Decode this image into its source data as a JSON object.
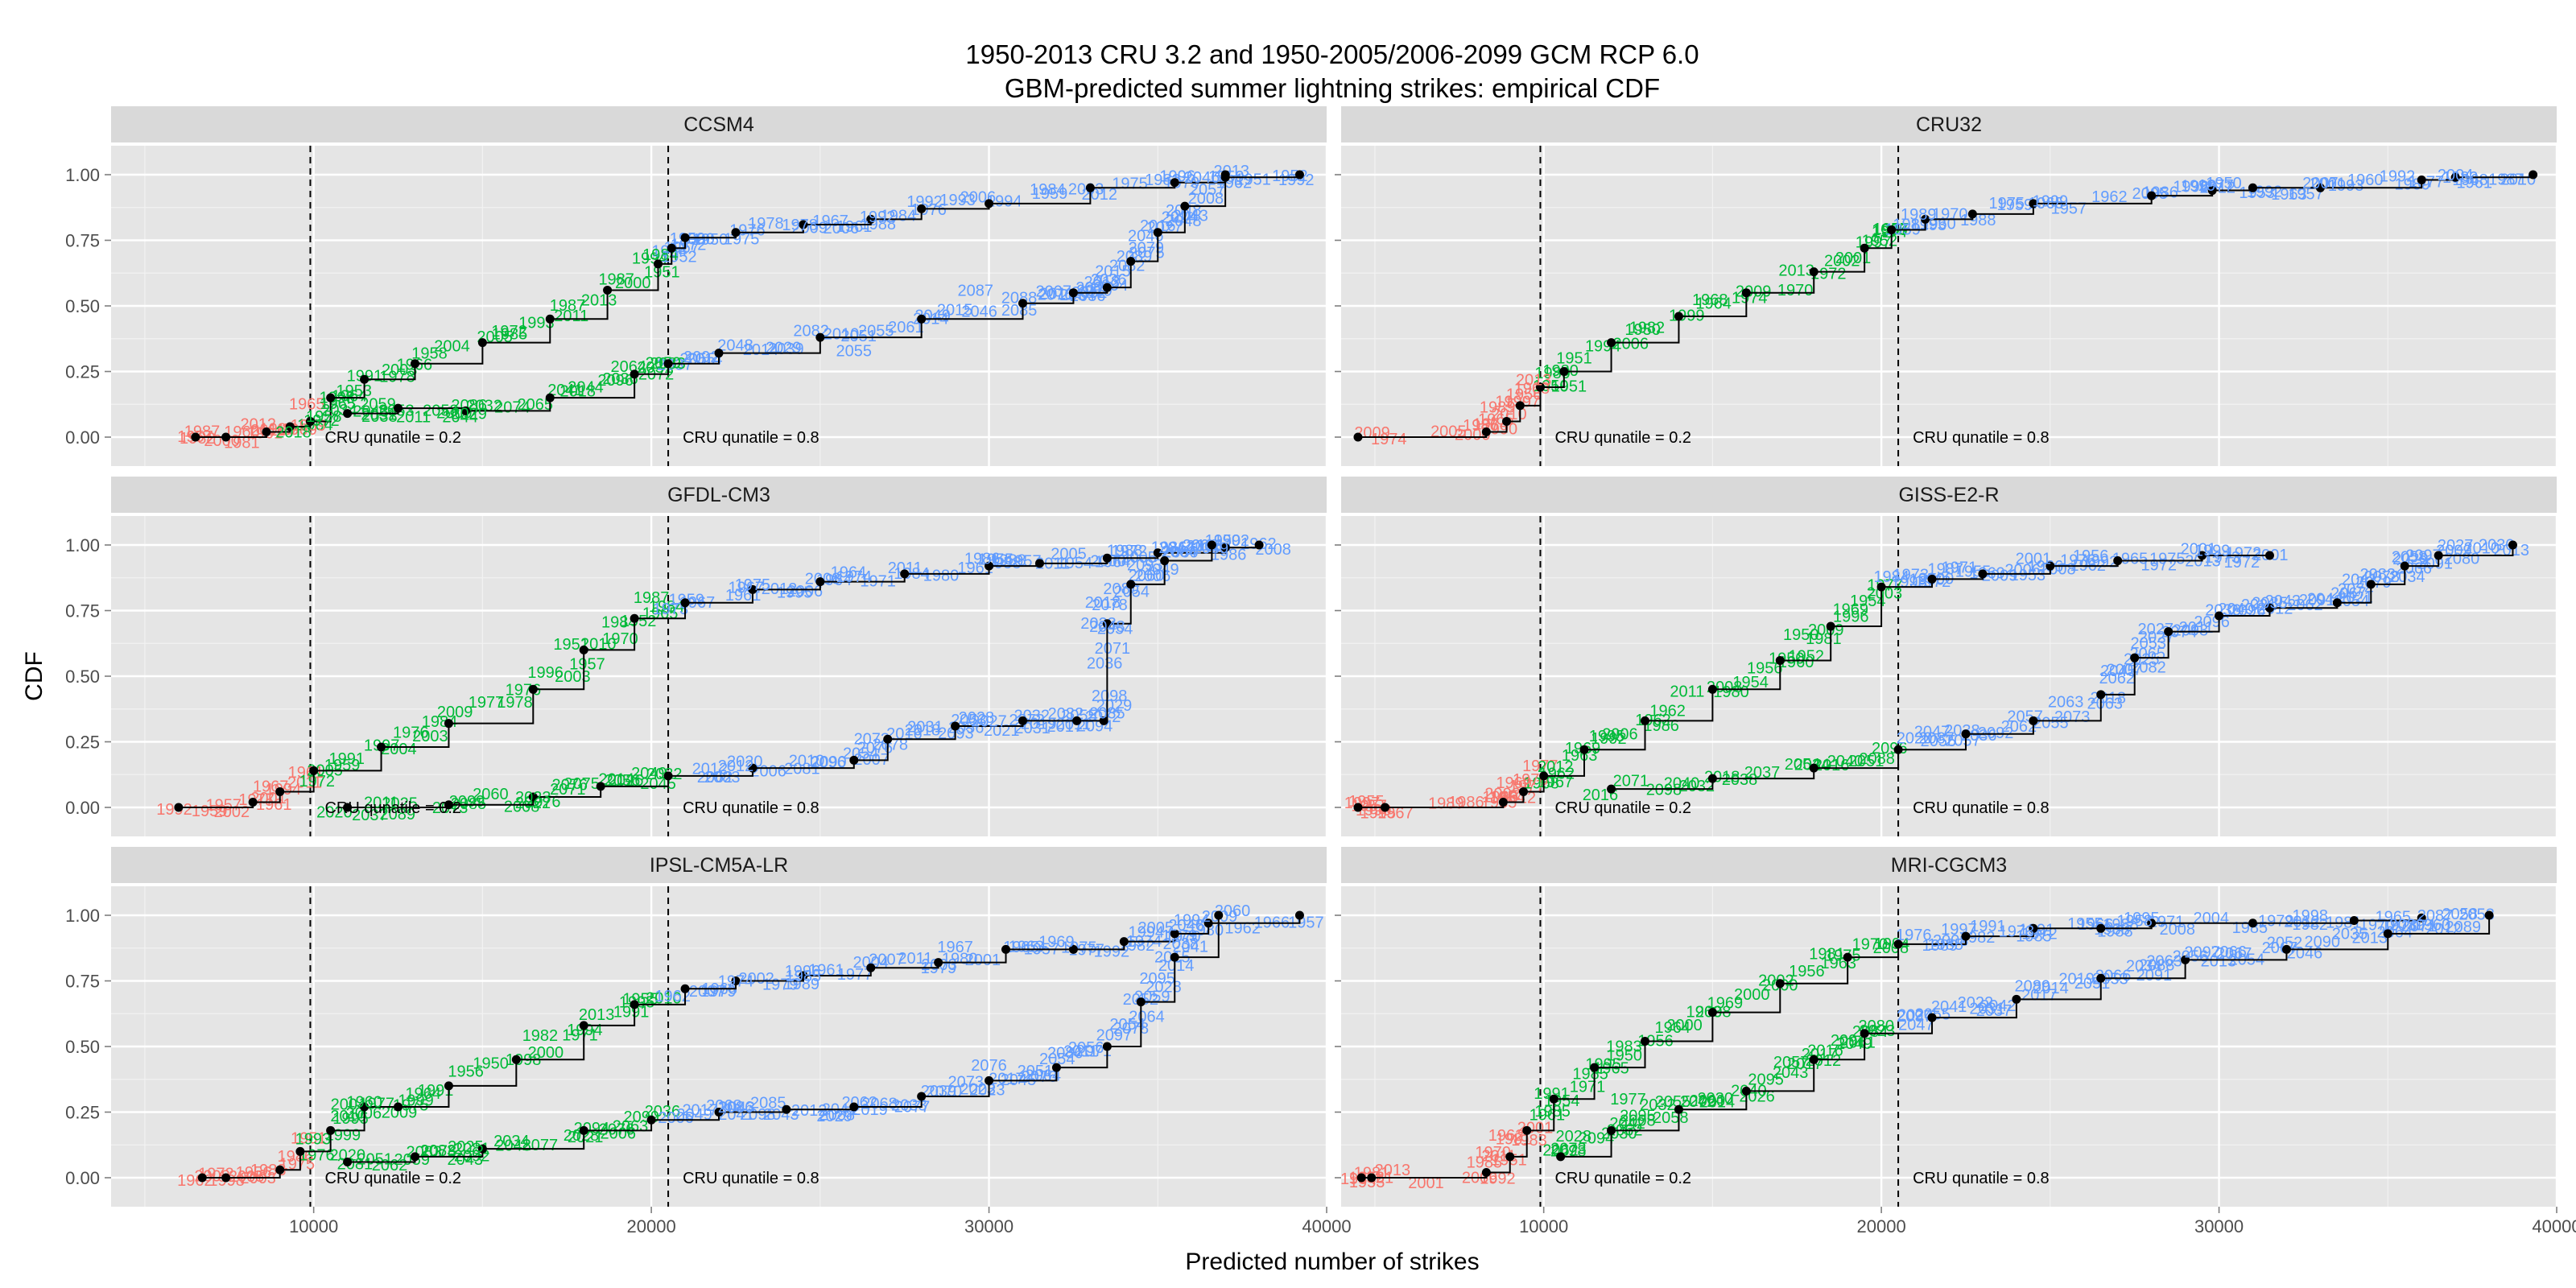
{
  "chart_data": {
    "type": "scatter",
    "title": "1950-2013 CRU 3.2 and 1950-2005/2006-2099 GCM RCP 6.0",
    "subtitle": "GBM-predicted summer lightning strikes: empirical CDF",
    "xlabel": "Predicted number of strikes",
    "ylabel": "CDF",
    "xlim": [
      4000,
      40000
    ],
    "ylim": [
      0,
      1
    ],
    "x_ticks": [
      10000,
      20000,
      30000,
      40000
    ],
    "y_ticks": [
      "0.00",
      "0.25",
      "0.50",
      "0.75",
      "1.00"
    ],
    "vlines": [
      {
        "x": 9900,
        "label": "CRU qunatile = 0.2"
      },
      {
        "x": 20500,
        "label": "CRU qunatile = 0.8"
      }
    ],
    "period_colors": {
      "low": "#F8766D",
      "mid": "#00BA38",
      "high": "#619CFF",
      "step": "#000000"
    },
    "panels": [
      {
        "name": "CCSM4",
        "curves": [
          {
            "x": [
              6500,
              7400,
              8600,
              9300,
              9900,
              10500,
              11500,
              13000,
              15000,
              17000,
              18700,
              20200,
              20600,
              21000,
              22500,
              24500,
              26500,
              28000,
              30000,
              33000,
              35500,
              37000,
              39200
            ],
            "y": [
              0.0,
              0.0,
              0.02,
              0.04,
              0.06,
              0.15,
              0.22,
              0.28,
              0.36,
              0.45,
              0.56,
              0.66,
              0.72,
              0.76,
              0.78,
              0.81,
              0.83,
              0.87,
              0.89,
              0.95,
              0.97,
              0.99,
              1.0
            ]
          },
          {
            "x": [
              11000,
              12500,
              14500,
              17000,
              19500,
              20500,
              22000,
              25000,
              28000,
              31000,
              32500,
              33500,
              34200,
              35000,
              35800,
              37000
            ],
            "y": [
              0.09,
              0.11,
              0.1,
              0.15,
              0.24,
              0.28,
              0.32,
              0.38,
              0.45,
              0.51,
              0.55,
              0.57,
              0.67,
              0.78,
              0.88,
              1.0
            ]
          }
        ],
        "year_labels": [
          {
            "text": "1958",
            "x": 10300,
            "y": 0.08,
            "p": "mid"
          },
          {
            "text": "2018",
            "x": 9400,
            "y": 0.02,
            "p": "mid"
          },
          {
            "text": "2029",
            "x": 14600,
            "y": 0.09,
            "p": "mid"
          },
          {
            "text": "1978",
            "x": 24400,
            "y": 0.81,
            "p": "high"
          },
          {
            "text": "1992",
            "x": 26700,
            "y": 0.84,
            "p": "high"
          },
          {
            "text": "1959",
            "x": 31800,
            "y": 0.93,
            "p": "high"
          },
          {
            "text": "2055",
            "x": 26000,
            "y": 0.33,
            "p": "high"
          },
          {
            "text": "2087",
            "x": 29600,
            "y": 0.56,
            "p": "high"
          }
        ]
      },
      {
        "name": "CRU32",
        "curves": [
          {
            "x": [
              4500,
              8300,
              8900,
              9300,
              9900,
              10600,
              12000,
              14000,
              16000,
              18000,
              19500,
              20300,
              21300,
              22700,
              24500,
              28000,
              29800,
              31000,
              33000,
              36000,
              37000,
              39300
            ],
            "y": [
              0.0,
              0.02,
              0.06,
              0.12,
              0.19,
              0.25,
              0.36,
              0.46,
              0.55,
              0.63,
              0.72,
              0.79,
              0.83,
              0.85,
              0.89,
              0.92,
              0.94,
              0.95,
              0.95,
              0.98,
              0.99,
              1.0
            ]
          }
        ],
        "year_labels": [
          {
            "text": "1999",
            "x": 25000,
            "y": 0.9,
            "p": "high"
          },
          {
            "text": "1977",
            "x": 29900,
            "y": 0.96,
            "p": "high"
          },
          {
            "text": "2007",
            "x": 33000,
            "y": 0.97,
            "p": "high"
          },
          {
            "text": "2004",
            "x": 37000,
            "y": 1.0,
            "p": "high"
          },
          {
            "text": "1989",
            "x": 21100,
            "y": 0.85,
            "p": "high"
          },
          {
            "text": "2013",
            "x": 9700,
            "y": 0.22,
            "p": "low"
          }
        ]
      },
      {
        "name": "GFDL-CM3",
        "curves": [
          {
            "x": [
              6000,
              8200,
              9000,
              10000,
              12000,
              14000,
              16500,
              18000,
              19500,
              21000,
              23000,
              25000,
              27500,
              30000,
              31500,
              33500,
              35000,
              37000,
              38000
            ],
            "y": [
              0.0,
              0.02,
              0.06,
              0.14,
              0.23,
              0.32,
              0.45,
              0.6,
              0.72,
              0.78,
              0.83,
              0.86,
              0.89,
              0.92,
              0.93,
              0.95,
              0.97,
              0.99,
              1.0
            ]
          },
          {
            "x": [
              11000,
              14000,
              16500,
              18500,
              20500,
              23000,
              26000,
              27000,
              29000,
              31000,
              32600,
              33400,
              33500,
              34200,
              35200,
              36600
            ],
            "y": [
              0.0,
              0.01,
              0.04,
              0.08,
              0.12,
              0.15,
              0.18,
              0.26,
              0.31,
              0.33,
              0.33,
              0.33,
              0.7,
              0.85,
              0.94,
              1.0
            ]
          }
        ],
        "year_labels": [
          {
            "text": "1987",
            "x": 20000,
            "y": 0.8,
            "p": "mid"
          },
          {
            "text": "1975",
            "x": 23000,
            "y": 0.85,
            "p": "high"
          },
          {
            "text": "1974",
            "x": 26000,
            "y": 0.88,
            "p": "high"
          },
          {
            "text": "1986",
            "x": 29800,
            "y": 0.95,
            "p": "high"
          },
          {
            "text": "2012",
            "x": 22500,
            "y": 0.16,
            "p": "high"
          },
          {
            "text": "2010",
            "x": 24600,
            "y": 0.18,
            "p": "high"
          },
          {
            "text": "2027",
            "x": 30000,
            "y": 0.33,
            "p": "high"
          },
          {
            "text": "2035",
            "x": 33500,
            "y": 0.36,
            "p": "high"
          },
          {
            "text": "2048",
            "x": 33500,
            "y": 0.69,
            "p": "high"
          },
          {
            "text": "2023",
            "x": 16500,
            "y": 0.04,
            "p": "mid"
          },
          {
            "text": "2011",
            "x": 12000,
            "y": 0.02,
            "p": "mid"
          }
        ]
      },
      {
        "name": "GISS-E2-R",
        "curves": [
          {
            "x": [
              4500,
              5300,
              8800,
              9400,
              10000,
              11200,
              13000,
              15000,
              17000,
              18500,
              20000,
              21500,
              23000,
              25000,
              27000,
              29500,
              31500
            ],
            "y": [
              0.0,
              0.0,
              0.02,
              0.06,
              0.12,
              0.22,
              0.33,
              0.45,
              0.56,
              0.69,
              0.84,
              0.87,
              0.89,
              0.92,
              0.94,
              0.96,
              0.96
            ]
          },
          {
            "x": [
              12000,
              15000,
              18000,
              20500,
              22500,
              24500,
              26500,
              27500,
              28500,
              30000,
              31500,
              33500,
              34500,
              35500,
              36500,
              38700
            ],
            "y": [
              0.07,
              0.11,
              0.15,
              0.22,
              0.28,
              0.33,
              0.43,
              0.57,
              0.67,
              0.73,
              0.76,
              0.78,
              0.85,
              0.92,
              0.96,
              1.0
            ]
          }
        ],
        "year_labels": [
          {
            "text": "1984",
            "x": 20300,
            "y": 0.88,
            "p": "high"
          },
          {
            "text": "1987",
            "x": 21900,
            "y": 0.91,
            "p": "high"
          },
          {
            "text": "2001",
            "x": 24500,
            "y": 0.95,
            "p": "high"
          },
          {
            "text": "1956",
            "x": 26200,
            "y": 0.96,
            "p": "high"
          },
          {
            "text": "1999",
            "x": 29800,
            "y": 0.98,
            "p": "high"
          },
          {
            "text": "2027",
            "x": 37000,
            "y": 1.0,
            "p": "high"
          },
          {
            "text": "2035",
            "x": 31500,
            "y": 0.78,
            "p": "high"
          },
          {
            "text": "2047",
            "x": 21500,
            "y": 0.29,
            "p": "high"
          }
        ]
      },
      {
        "name": "IPSL-CM5A-LR",
        "curves": [
          {
            "x": [
              6700,
              7400,
              9000,
              9600,
              10500,
              11500,
              12500,
              14000,
              16000,
              18000,
              19500,
              21000,
              22500,
              24500,
              26500,
              28500,
              30500,
              32500,
              34000,
              35500,
              36500,
              39200
            ],
            "y": [
              0.0,
              0.0,
              0.03,
              0.1,
              0.18,
              0.27,
              0.27,
              0.35,
              0.45,
              0.58,
              0.66,
              0.72,
              0.75,
              0.77,
              0.8,
              0.82,
              0.87,
              0.87,
              0.9,
              0.93,
              0.97,
              1.0
            ]
          },
          {
            "x": [
              11000,
              13000,
              15000,
              18000,
              20000,
              22000,
              24000,
              26000,
              28000,
              30000,
              32000,
              33500,
              34500,
              35500,
              36800
            ],
            "y": [
              0.06,
              0.08,
              0.11,
              0.18,
              0.22,
              0.25,
              0.26,
              0.27,
              0.31,
              0.37,
              0.42,
              0.5,
              0.67,
              0.84,
              1.0
            ]
          }
        ],
        "year_labels": [
          {
            "text": "1960",
            "x": 11500,
            "y": 0.29,
            "p": "mid"
          },
          {
            "text": "1974",
            "x": 22500,
            "y": 0.75,
            "p": "high"
          },
          {
            "text": "1985",
            "x": 24500,
            "y": 0.77,
            "p": "high"
          },
          {
            "text": "1967",
            "x": 29000,
            "y": 0.88,
            "p": "high"
          },
          {
            "text": "1969",
            "x": 32000,
            "y": 0.9,
            "p": "high"
          },
          {
            "text": "2086",
            "x": 22500,
            "y": 0.27,
            "p": "high"
          },
          {
            "text": "2076",
            "x": 30000,
            "y": 0.43,
            "p": "high"
          },
          {
            "text": "2025",
            "x": 14500,
            "y": 0.12,
            "p": "mid"
          }
        ]
      },
      {
        "name": "MRI-CGCM3",
        "curves": [
          {
            "x": [
              4600,
              4900,
              8300,
              9000,
              9500,
              10300,
              11500,
              13000,
              15000,
              17000,
              19000,
              20500,
              22500,
              24500,
              26500,
              28000,
              31000,
              34000,
              36000
            ],
            "y": [
              0.0,
              0.0,
              0.02,
              0.08,
              0.18,
              0.3,
              0.42,
              0.52,
              0.63,
              0.74,
              0.84,
              0.89,
              0.92,
              0.95,
              0.95,
              0.97,
              0.97,
              0.98,
              0.99
            ]
          },
          {
            "x": [
              10500,
              12000,
              14000,
              16000,
              18000,
              19500,
              21500,
              24000,
              26500,
              29000,
              32000,
              35000,
              38000
            ],
            "y": [
              0.08,
              0.18,
              0.26,
              0.33,
              0.45,
              0.55,
              0.61,
              0.68,
              0.76,
              0.83,
              0.87,
              0.93,
              1.0
            ]
          }
        ],
        "year_labels": [
          {
            "text": "1985",
            "x": 21900,
            "y": 0.89,
            "p": "high"
          },
          {
            "text": "1973",
            "x": 24000,
            "y": 0.94,
            "p": "high"
          },
          {
            "text": "1958",
            "x": 27500,
            "y": 0.98,
            "p": "high"
          },
          {
            "text": "1998",
            "x": 32700,
            "y": 1.0,
            "p": "high"
          },
          {
            "text": "2097",
            "x": 29500,
            "y": 0.86,
            "p": "high"
          },
          {
            "text": "2087",
            "x": 36400,
            "y": 1.0,
            "p": "high"
          },
          {
            "text": "1977",
            "x": 12500,
            "y": 0.3,
            "p": "mid"
          }
        ]
      }
    ]
  }
}
